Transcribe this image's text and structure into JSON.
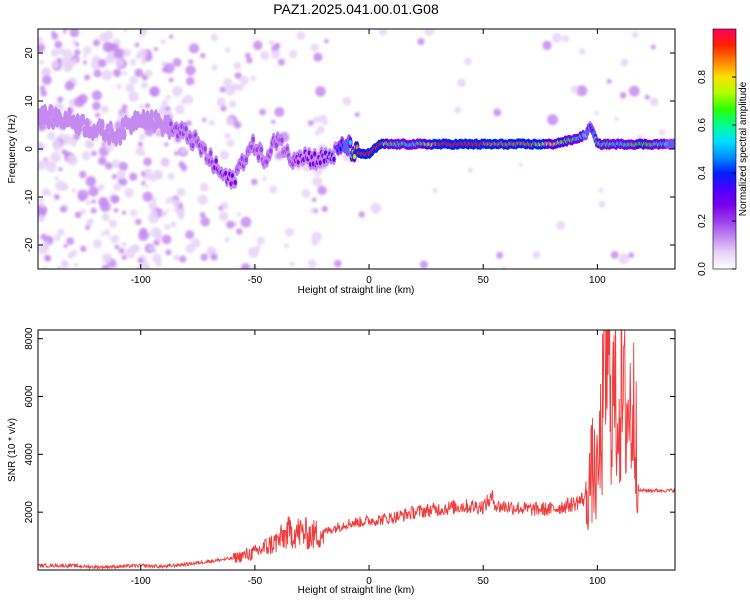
{
  "title": "PAZ1.2025.041.00.01.G08",
  "colors": {
    "snr_line": "#ef3b3b",
    "axis": "#000000",
    "colormap": [
      "#ffffff",
      "#e6d4f7",
      "#c48af0",
      "#9b3df0",
      "#7a00e8",
      "#4b00ff",
      "#0020ff",
      "#0090ff",
      "#00e0ff",
      "#00ff90",
      "#30ff00",
      "#b0ff00",
      "#ffe000",
      "#ff8000",
      "#ff2000",
      "#ff0060"
    ]
  },
  "chart_data": [
    {
      "type": "heatmap",
      "xlabel": "Height of straight line (km)",
      "ylabel": "Frequency (Hz)",
      "xlim": [
        -145,
        134
      ],
      "ylim": [
        -25,
        25
      ],
      "xticks": [
        -100,
        -50,
        0,
        50,
        100
      ],
      "yticks": [
        -20,
        -10,
        0,
        10,
        20
      ],
      "xtick_labels": [
        "-100",
        "-50",
        "0",
        "50",
        "100"
      ],
      "ytick_labels": [
        "-20",
        "-10",
        "0",
        "10",
        "20"
      ],
      "colorbar": {
        "label": "Normalized spectral amplitude",
        "range": [
          0,
          1
        ],
        "ticks": [
          0.0,
          0.2,
          0.4,
          0.6,
          0.8
        ],
        "tick_labels": [
          "0.0",
          "0.2",
          "0.4",
          "0.6",
          "0.8"
        ]
      },
      "ridge": {
        "x": [
          -145,
          -130,
          -120,
          -110,
          -100,
          -90,
          -85,
          -80,
          -75,
          -70,
          -65,
          -60,
          -55,
          -50,
          -45,
          -40,
          -35,
          -30,
          -25,
          -20,
          -15,
          -10,
          -8,
          -5,
          0,
          5,
          10,
          20,
          30,
          40,
          50,
          60,
          70,
          80,
          90,
          95,
          97,
          100,
          110,
          120,
          134
        ],
        "freq": [
          7,
          6,
          4,
          3,
          7,
          5,
          4,
          3,
          1,
          -2,
          -5,
          -7,
          -2,
          1,
          -3,
          3,
          -2,
          -1,
          -2,
          -2,
          -1,
          1,
          0,
          -1,
          -1,
          1,
          1,
          1,
          1,
          1,
          1,
          1,
          1,
          1,
          2,
          3,
          5,
          1,
          1,
          1,
          1
        ],
        "amplitude": [
          0.15,
          0.12,
          0.12,
          0.12,
          0.15,
          0.15,
          0.18,
          0.2,
          0.2,
          0.22,
          0.25,
          0.25,
          0.2,
          0.22,
          0.22,
          0.22,
          0.22,
          0.25,
          0.25,
          0.3,
          0.35,
          0.45,
          0.55,
          0.9,
          0.9,
          0.95,
          0.6,
          0.55,
          0.9,
          0.9,
          0.9,
          0.85,
          0.85,
          0.8,
          0.6,
          0.5,
          0.35,
          0.6,
          0.55,
          0.7,
          0.45
        ]
      }
    },
    {
      "type": "line",
      "xlabel": "Height of straight line (km)",
      "ylabel": "SNR (10 * v/v)",
      "xlim": [
        -145,
        134
      ],
      "ylim": [
        0,
        8300
      ],
      "xticks": [
        -100,
        -50,
        0,
        50,
        100
      ],
      "yticks": [
        2000,
        4000,
        6000,
        8000
      ],
      "xtick_labels": [
        "-100",
        "-50",
        "0",
        "50",
        "100"
      ],
      "ytick_labels": [
        "2000",
        "4000",
        "6000",
        "8000"
      ],
      "x": [
        -145,
        -130,
        -120,
        -110,
        -100,
        -90,
        -80,
        -70,
        -60,
        -50,
        -45,
        -40,
        -35,
        -30,
        -25,
        -20,
        -10,
        0,
        10,
        20,
        30,
        40,
        50,
        54,
        56,
        60,
        70,
        80,
        90,
        95,
        98,
        100,
        102,
        104,
        106,
        108,
        110,
        112,
        115,
        116,
        117,
        118,
        125,
        134
      ],
      "y": [
        150,
        150,
        100,
        120,
        150,
        120,
        200,
        300,
        400,
        600,
        800,
        1000,
        1300,
        1300,
        1200,
        1300,
        1600,
        1700,
        1800,
        2000,
        2100,
        2200,
        2200,
        2500,
        2200,
        2200,
        2100,
        2100,
        2300,
        2500,
        3500,
        3000,
        5000,
        7500,
        6200,
        5800,
        5700,
        5600,
        5500,
        5400,
        5500,
        2750,
        2750,
        2750
      ]
    }
  ]
}
